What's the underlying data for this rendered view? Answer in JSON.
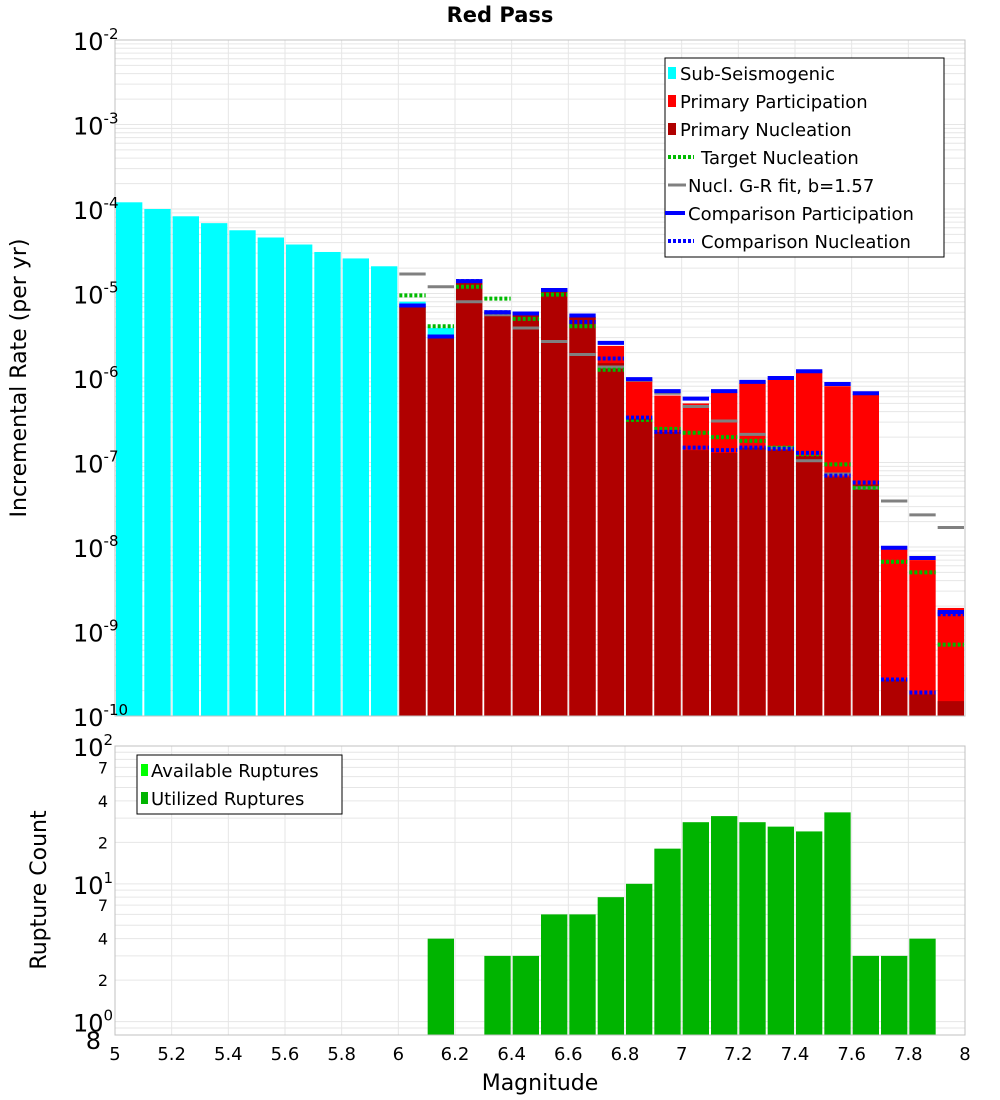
{
  "title": "Red Pass",
  "colors": {
    "sub_seismogenic": "#00ffff",
    "primary_participation": "#ff0000",
    "primary_nucleation": "#b00000",
    "target_nucleation": "#00bb00",
    "gr_fit": "#808080",
    "comparison": "#0000ff",
    "available": "#00ff00",
    "utilized": "#00b400",
    "grid": "#e6e6e6",
    "frame": "#c0c0c0"
  },
  "chart_data": [
    {
      "type": "bar",
      "name": "rate-chart",
      "title": "Red Pass",
      "xlabel": "Magnitude",
      "ylabel": "Incremental Rate (per yr)",
      "yscale": "log",
      "xlim": [
        5,
        8
      ],
      "ylim_exp": [
        -10,
        -2
      ],
      "bin_width": 0.1,
      "legend": {
        "position": "top-right",
        "entries": [
          {
            "label": "Sub-Seismogenic",
            "key": "sub_seismogenic",
            "style": "bar"
          },
          {
            "label": "Primary Participation",
            "key": "primary_participation",
            "style": "bar"
          },
          {
            "label": "Primary Nucleation",
            "key": "primary_nucleation",
            "style": "bar"
          },
          {
            "label": "Target Nucleation",
            "key": "target_nucleation",
            "style": "dotted"
          },
          {
            "label": "Nucl. G-R fit, b=1.57",
            "key": "gr_fit",
            "style": "solid"
          },
          {
            "label": "Comparison Participation",
            "key": "comparison",
            "style": "thick"
          },
          {
            "label": "Comparison Nucleation",
            "key": "comparison",
            "style": "dotted"
          }
        ]
      },
      "sub_seismogenic": {
        "x": [
          5.05,
          5.15,
          5.25,
          5.35,
          5.45,
          5.55,
          5.65,
          5.75,
          5.85,
          5.95,
          6.05,
          6.15
        ],
        "values": [
          0.00012,
          0.0001,
          8.2e-05,
          6.8e-05,
          5.6e-05,
          4.6e-05,
          3.8e-05,
          3.1e-05,
          2.6e-05,
          2.1e-05,
          8e-06,
          3.9e-06
        ]
      },
      "magnitudes": [
        6.05,
        6.15,
        6.25,
        6.35,
        6.45,
        6.55,
        6.65,
        6.75,
        6.85,
        6.95,
        7.05,
        7.15,
        7.25,
        7.35,
        7.45,
        7.55,
        7.65,
        7.75,
        7.85,
        7.95
      ],
      "primary_participation": [
        7e-06,
        3e-06,
        1.35e-05,
        6e-06,
        5.5e-06,
        1.1e-05,
        5.3e-06,
        2.4e-06,
        9.5e-07,
        6.2e-07,
        5e-07,
        6.8e-07,
        8.7e-07,
        1e-06,
        1.2e-06,
        8e-07,
        6.4e-07,
        9.5e-09,
        7e-09,
        1.9e-09
      ],
      "primary_nucleation": [
        7e-06,
        3e-06,
        1.35e-05,
        6e-06,
        5.5e-06,
        1.1e-05,
        5.3e-06,
        1.5e-06,
        3.3e-07,
        2.3e-07,
        1.4e-07,
        1.3e-07,
        1.5e-07,
        1.4e-07,
        1.2e-07,
        6.7e-08,
        5.5e-08,
        2.7e-10,
        1.8e-10,
        1.5e-10
      ],
      "target_nucleation": [
        9.5e-06,
        4.1e-06,
        1.2e-05,
        8.7e-06,
        5e-06,
        9.7e-06,
        4.1e-06,
        1.25e-06,
        3.2e-07,
        2.5e-07,
        2.25e-07,
        2e-07,
        1.8e-07,
        1.5e-07,
        1.25e-07,
        9.5e-08,
        5e-08,
        6.7e-09,
        5e-09,
        7e-10
      ],
      "gr_fit": [
        1.7e-05,
        1.2e-05,
        8e-06,
        5.6e-06,
        3.9e-06,
        2.7e-06,
        1.9e-06,
        1.35e-06,
        9.4e-07,
        6.6e-07,
        4.6e-07,
        3.1e-07,
        2.15e-07,
        1.5e-07,
        1.05e-07,
        7.3e-08,
        5e-08,
        3.5e-08,
        2.4e-08,
        1.7e-08
      ],
      "comparison_participation": [
        7.2e-06,
        3.1e-06,
        1.4e-05,
        6e-06,
        5.8e-06,
        1.1e-05,
        5.5e-06,
        2.6e-06,
        9.7e-07,
        7e-07,
        5.7e-07,
        7e-07,
        9e-07,
        1e-06,
        1.2e-06,
        8.5e-07,
        6.6e-07,
        9.8e-09,
        7.4e-09,
        1.7e-09
      ],
      "comparison_nucleation": [
        7.2e-06,
        3.1e-06,
        1.4e-05,
        6e-06,
        5.8e-06,
        1.1e-05,
        4.6e-06,
        1.7e-06,
        3.4e-07,
        2.3e-07,
        1.5e-07,
        1.4e-07,
        1.5e-07,
        1.45e-07,
        1.3e-07,
        7e-08,
        5.8e-08,
        2.7e-10,
        1.9e-10,
        1.6e-09
      ],
      "y_tick_labels": [
        {
          "exp": -2,
          "base": "10",
          "sup": "-2"
        },
        {
          "exp": -3,
          "base": "10",
          "sup": "-3"
        },
        {
          "exp": -4,
          "base": "10",
          "sup": "-4"
        },
        {
          "exp": -5,
          "base": "10",
          "sup": "-5"
        },
        {
          "exp": -6,
          "base": "10",
          "sup": "-6"
        },
        {
          "exp": -7,
          "base": "10",
          "sup": "-7"
        },
        {
          "exp": -8,
          "base": "10",
          "sup": "-8"
        },
        {
          "exp": -9,
          "base": "10",
          "sup": "-9"
        },
        {
          "exp": -10,
          "base": "10",
          "sup": "-10"
        }
      ]
    },
    {
      "type": "bar",
      "name": "count-chart",
      "xlabel": "Magnitude",
      "ylabel": "Rupture Count",
      "yscale": "log",
      "ylim": [
        0.8,
        100
      ],
      "legend": {
        "position": "top-left",
        "entries": [
          {
            "label": "Available Ruptures",
            "key": "available"
          },
          {
            "label": "Utilized Ruptures",
            "key": "utilized"
          }
        ]
      },
      "magnitudes": [
        6.15,
        6.35,
        6.45,
        6.55,
        6.65,
        6.75,
        6.85,
        6.95,
        7.05,
        7.15,
        7.25,
        7.35,
        7.45,
        7.55,
        7.65,
        7.75,
        7.85
      ],
      "utilized": [
        4,
        3,
        3,
        6,
        6,
        8,
        10,
        18,
        28,
        31,
        28,
        26,
        24,
        33,
        3,
        3,
        4
      ],
      "y_tick_labels": [
        {
          "value": 100,
          "label": "10",
          "sup": "2",
          "major": true
        },
        {
          "value": 70,
          "label": "7",
          "sup": "",
          "major": false
        },
        {
          "value": 40,
          "label": "4",
          "sup": "",
          "major": false
        },
        {
          "value": 20,
          "label": "2",
          "sup": "",
          "major": false
        },
        {
          "value": 10,
          "label": "10",
          "sup": "1",
          "major": true
        },
        {
          "value": 7,
          "label": "7",
          "sup": "",
          "major": false
        },
        {
          "value": 4,
          "label": "4",
          "sup": "",
          "major": false
        },
        {
          "value": 2,
          "label": "2",
          "sup": "",
          "major": false
        },
        {
          "value": 1,
          "label": "10",
          "sup": "0",
          "major": true
        },
        {
          "value": 0.8,
          "label": "8",
          "sup": "",
          "major": false
        }
      ]
    }
  ],
  "x_ticks": [
    "5",
    "5.2",
    "5.4",
    "5.6",
    "5.8",
    "6",
    "6.2",
    "6.4",
    "6.6",
    "6.8",
    "7",
    "7.2",
    "7.4",
    "7.6",
    "7.8",
    "8"
  ]
}
